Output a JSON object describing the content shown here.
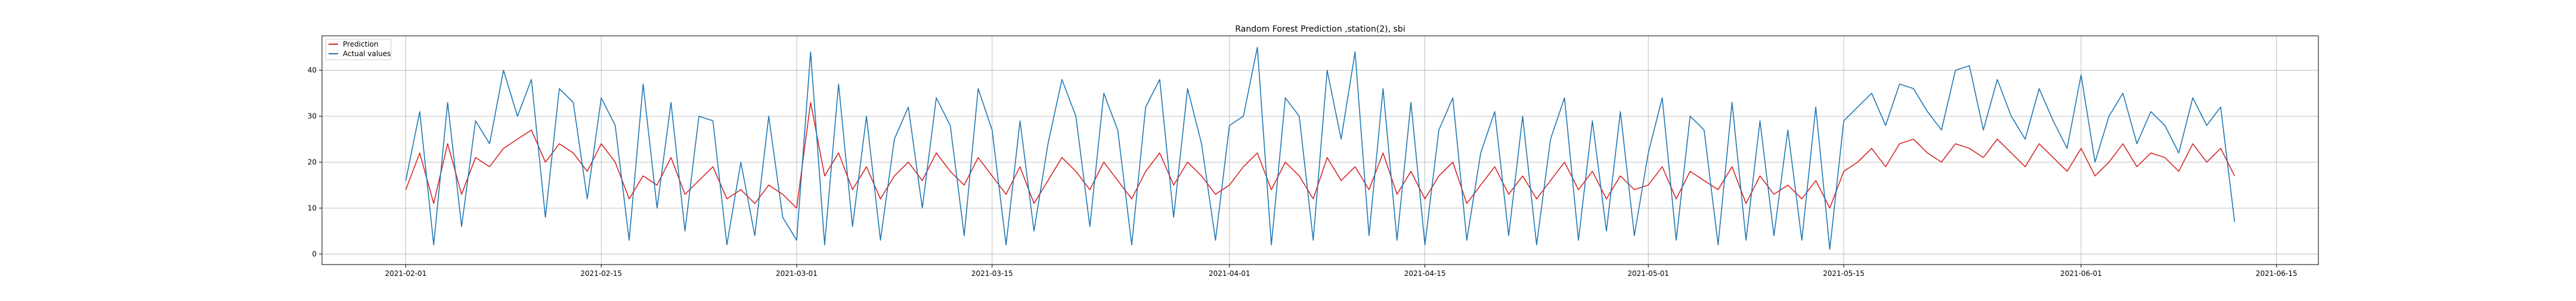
{
  "chart_data": {
    "type": "line",
    "title": "Random Forest Prediction ,station(2), sbi",
    "xlabel": "",
    "ylabel": "",
    "x_range": [
      "2021-01-26",
      "2021-06-18"
    ],
    "ylim": [
      -2.3,
      47.5
    ],
    "x_ticks": [
      "2021-02-01",
      "2021-02-15",
      "2021-03-01",
      "2021-03-15",
      "2021-04-01",
      "2021-04-15",
      "2021-05-01",
      "2021-05-15",
      "2021-06-01",
      "2021-06-15"
    ],
    "y_ticks": [
      0,
      10,
      20,
      30,
      40
    ],
    "grid": true,
    "legend_position": "top-left",
    "series": [
      {
        "name": "Prediction",
        "color": "#d62728",
        "x": [
          "2021-02-01",
          "2021-02-02",
          "2021-02-03",
          "2021-02-04",
          "2021-02-05",
          "2021-02-06",
          "2021-02-07",
          "2021-02-08",
          "2021-02-09",
          "2021-02-10",
          "2021-02-11",
          "2021-02-12",
          "2021-02-13",
          "2021-02-14",
          "2021-02-15",
          "2021-02-16",
          "2021-02-17",
          "2021-02-18",
          "2021-02-19",
          "2021-02-20",
          "2021-02-21",
          "2021-02-22",
          "2021-02-23",
          "2021-02-24",
          "2021-02-25",
          "2021-02-26",
          "2021-02-27",
          "2021-02-28",
          "2021-03-01",
          "2021-03-02",
          "2021-03-03",
          "2021-03-04",
          "2021-03-05",
          "2021-03-06",
          "2021-03-07",
          "2021-03-08",
          "2021-03-09",
          "2021-03-10",
          "2021-03-11",
          "2021-03-12",
          "2021-03-13",
          "2021-03-14",
          "2021-03-15",
          "2021-03-16",
          "2021-03-17",
          "2021-03-18",
          "2021-03-19",
          "2021-03-20",
          "2021-03-21",
          "2021-03-22",
          "2021-03-23",
          "2021-03-24",
          "2021-03-25",
          "2021-03-26",
          "2021-03-27",
          "2021-03-28",
          "2021-03-29",
          "2021-03-30",
          "2021-03-31",
          "2021-04-01",
          "2021-04-02",
          "2021-04-03",
          "2021-04-04",
          "2021-04-05",
          "2021-04-06",
          "2021-04-07",
          "2021-04-08",
          "2021-04-09",
          "2021-04-10",
          "2021-04-11",
          "2021-04-12",
          "2021-04-13",
          "2021-04-14",
          "2021-04-15",
          "2021-04-16",
          "2021-04-17",
          "2021-04-18",
          "2021-04-19",
          "2021-04-20",
          "2021-04-21",
          "2021-04-22",
          "2021-04-23",
          "2021-04-24",
          "2021-04-25",
          "2021-04-26",
          "2021-04-27",
          "2021-04-28",
          "2021-04-29",
          "2021-04-30",
          "2021-05-01",
          "2021-05-02",
          "2021-05-03",
          "2021-05-04",
          "2021-05-05",
          "2021-05-06",
          "2021-05-07",
          "2021-05-08",
          "2021-05-09",
          "2021-05-10",
          "2021-05-11",
          "2021-05-12",
          "2021-05-13",
          "2021-05-14",
          "2021-05-15",
          "2021-05-16",
          "2021-05-17",
          "2021-05-18",
          "2021-05-19",
          "2021-05-20",
          "2021-05-21",
          "2021-05-22",
          "2021-05-23",
          "2021-05-24",
          "2021-05-25",
          "2021-05-26",
          "2021-05-27",
          "2021-05-28",
          "2021-05-29",
          "2021-05-30",
          "2021-05-31",
          "2021-06-01",
          "2021-06-02",
          "2021-06-03",
          "2021-06-04",
          "2021-06-05",
          "2021-06-06",
          "2021-06-07",
          "2021-06-08",
          "2021-06-09",
          "2021-06-10",
          "2021-06-11",
          "2021-06-12"
        ],
        "values": [
          14,
          22,
          11,
          24,
          13,
          21,
          19,
          23,
          25,
          27,
          20,
          24,
          22,
          18,
          24,
          20,
          12,
          17,
          15,
          21,
          13,
          16,
          19,
          12,
          14,
          11,
          15,
          13,
          10,
          33,
          17,
          22,
          14,
          19,
          12,
          17,
          20,
          16,
          22,
          18,
          15,
          21,
          17,
          13,
          19,
          11,
          16,
          21,
          18,
          14,
          20,
          16,
          12,
          18,
          22,
          15,
          20,
          17,
          13,
          15,
          19,
          22,
          14,
          20,
          17,
          12,
          21,
          16,
          19,
          14,
          22,
          13,
          18,
          12,
          17,
          20,
          11,
          15,
          19,
          13,
          17,
          12,
          16,
          20,
          14,
          18,
          12,
          17,
          14,
          15,
          19,
          12,
          18,
          16,
          14,
          19,
          11,
          17,
          13,
          15,
          12,
          16,
          10,
          18,
          20,
          23,
          19,
          24,
          25,
          22,
          20,
          24,
          23,
          21,
          25,
          22,
          19,
          24,
          21,
          18,
          23,
          17,
          20,
          24,
          19,
          22,
          21,
          18,
          24,
          20,
          23,
          17
        ]
      },
      {
        "name": "Actual values",
        "color": "#1f77b4",
        "x": [
          "2021-02-01",
          "2021-02-02",
          "2021-02-03",
          "2021-02-04",
          "2021-02-05",
          "2021-02-06",
          "2021-02-07",
          "2021-02-08",
          "2021-02-09",
          "2021-02-10",
          "2021-02-11",
          "2021-02-12",
          "2021-02-13",
          "2021-02-14",
          "2021-02-15",
          "2021-02-16",
          "2021-02-17",
          "2021-02-18",
          "2021-02-19",
          "2021-02-20",
          "2021-02-21",
          "2021-02-22",
          "2021-02-23",
          "2021-02-24",
          "2021-02-25",
          "2021-02-26",
          "2021-02-27",
          "2021-02-28",
          "2021-03-01",
          "2021-03-02",
          "2021-03-03",
          "2021-03-04",
          "2021-03-05",
          "2021-03-06",
          "2021-03-07",
          "2021-03-08",
          "2021-03-09",
          "2021-03-10",
          "2021-03-11",
          "2021-03-12",
          "2021-03-13",
          "2021-03-14",
          "2021-03-15",
          "2021-03-16",
          "2021-03-17",
          "2021-03-18",
          "2021-03-19",
          "2021-03-20",
          "2021-03-21",
          "2021-03-22",
          "2021-03-23",
          "2021-03-24",
          "2021-03-25",
          "2021-03-26",
          "2021-03-27",
          "2021-03-28",
          "2021-03-29",
          "2021-03-30",
          "2021-03-31",
          "2021-04-01",
          "2021-04-02",
          "2021-04-03",
          "2021-04-04",
          "2021-04-05",
          "2021-04-06",
          "2021-04-07",
          "2021-04-08",
          "2021-04-09",
          "2021-04-10",
          "2021-04-11",
          "2021-04-12",
          "2021-04-13",
          "2021-04-14",
          "2021-04-15",
          "2021-04-16",
          "2021-04-17",
          "2021-04-18",
          "2021-04-19",
          "2021-04-20",
          "2021-04-21",
          "2021-04-22",
          "2021-04-23",
          "2021-04-24",
          "2021-04-25",
          "2021-04-26",
          "2021-04-27",
          "2021-04-28",
          "2021-04-29",
          "2021-04-30",
          "2021-05-01",
          "2021-05-02",
          "2021-05-03",
          "2021-05-04",
          "2021-05-05",
          "2021-05-06",
          "2021-05-07",
          "2021-05-08",
          "2021-05-09",
          "2021-05-10",
          "2021-05-11",
          "2021-05-12",
          "2021-05-13",
          "2021-05-14",
          "2021-05-15",
          "2021-05-16",
          "2021-05-17",
          "2021-05-18",
          "2021-05-19",
          "2021-05-20",
          "2021-05-21",
          "2021-05-22",
          "2021-05-23",
          "2021-05-24",
          "2021-05-25",
          "2021-05-26",
          "2021-05-27",
          "2021-05-28",
          "2021-05-29",
          "2021-05-30",
          "2021-05-31",
          "2021-06-01",
          "2021-06-02",
          "2021-06-03",
          "2021-06-04",
          "2021-06-05",
          "2021-06-06",
          "2021-06-07",
          "2021-06-08",
          "2021-06-09",
          "2021-06-10",
          "2021-06-11",
          "2021-06-12"
        ],
        "values": [
          16,
          31,
          2,
          33,
          6,
          29,
          24,
          40,
          30,
          38,
          8,
          36,
          33,
          12,
          34,
          28,
          3,
          37,
          10,
          33,
          5,
          30,
          29,
          2,
          20,
          4,
          30,
          8,
          3,
          44,
          2,
          37,
          6,
          30,
          3,
          25,
          32,
          10,
          34,
          28,
          4,
          36,
          27,
          2,
          29,
          5,
          24,
          38,
          30,
          6,
          35,
          27,
          2,
          32,
          38,
          8,
          36,
          24,
          3,
          28,
          30,
          45,
          2,
          34,
          30,
          3,
          40,
          25,
          44,
          4,
          36,
          3,
          33,
          2,
          27,
          34,
          3,
          22,
          31,
          4,
          30,
          2,
          25,
          34,
          3,
          29,
          5,
          31,
          4,
          22,
          34,
          3,
          30,
          27,
          2,
          33,
          3,
          29,
          4,
          27,
          3,
          32,
          1,
          29,
          32,
          35,
          28,
          37,
          36,
          31,
          27,
          40,
          41,
          27,
          38,
          30,
          25,
          36,
          29,
          23,
          39,
          20,
          30,
          35,
          24,
          31,
          28,
          22,
          34,
          28,
          32,
          7
        ]
      }
    ]
  }
}
